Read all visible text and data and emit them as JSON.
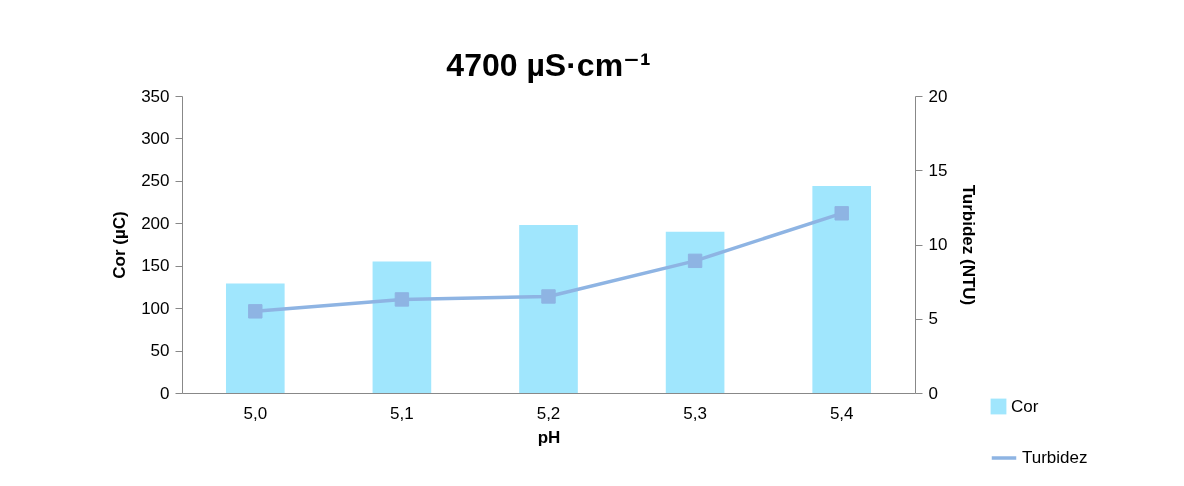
{
  "chart_data": {
    "type": "bar",
    "title": "4700 µS·cm⁻¹",
    "xlabel": "pH",
    "ylabel": "Cor (µC)",
    "y2label": "Turbidez (NTU)",
    "categories": [
      "5,0",
      "5,1",
      "5,2",
      "5,3",
      "5,4"
    ],
    "series": [
      {
        "name": "Cor",
        "color": "#a0e6fd",
        "values": [
          129,
          155,
          198,
          190,
          244
        ]
      },
      {
        "name": "Turbidez",
        "type": "line",
        "axis": "y2",
        "color": "#8eb4e3",
        "values": [
          5.5,
          6.3,
          6.5,
          8.9,
          12.1
        ]
      }
    ],
    "marker": "square",
    "ylim": [
      0,
      350
    ],
    "yticks": [
      0,
      50,
      100,
      150,
      200,
      250,
      300,
      350
    ],
    "y2lim": [
      0,
      20
    ],
    "y2ticks": [
      0,
      5,
      10,
      15,
      20
    ],
    "grid": false,
    "legend": "bottom right"
  }
}
